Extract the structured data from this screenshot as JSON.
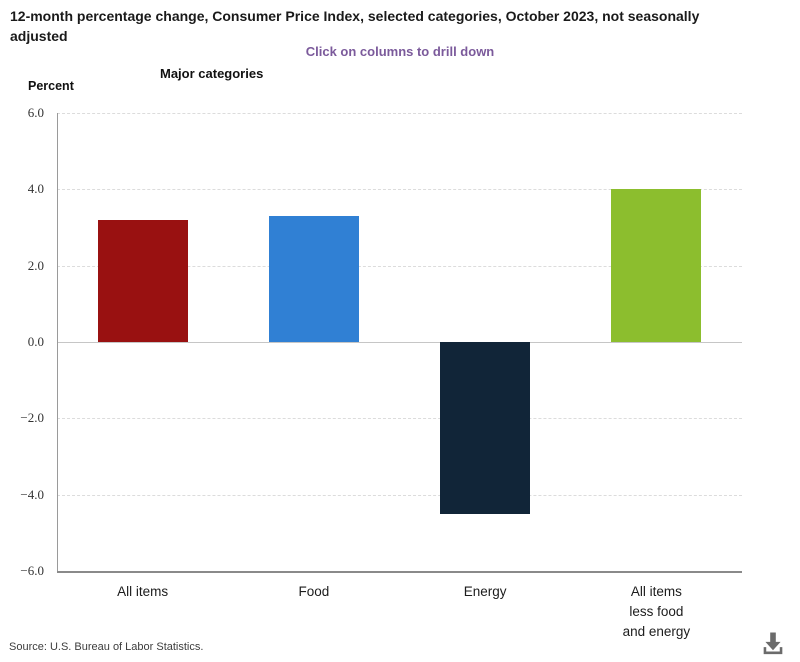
{
  "header": {
    "title": "12-month percentage change, Consumer Price Index, selected categories, October 2023, not seasonally adjusted",
    "subtitle": "Click on columns to drill down",
    "subtitle_color": "#7B5A9B",
    "group_label": "Major categories",
    "axis_unit_label": "Percent"
  },
  "chart_data": {
    "type": "bar",
    "title": "12-month percentage change, Consumer Price Index, selected categories, October 2023, not seasonally adjusted",
    "categories": [
      "All items",
      "Food",
      "Energy",
      "All items less food and energy"
    ],
    "category_label_lines": [
      [
        "All items"
      ],
      [
        "Food"
      ],
      [
        "Energy"
      ],
      [
        "All items",
        "less food",
        "and energy"
      ]
    ],
    "values": [
      3.2,
      3.3,
      -4.5,
      4.0
    ],
    "colors": [
      "#991111",
      "#3080D4",
      "#112538",
      "#8CBE2E"
    ],
    "xlabel": "Major categories",
    "ylabel": "Percent",
    "ylim": [
      -6.0,
      6.0
    ],
    "yticks": [
      6.0,
      4.0,
      2.0,
      0.0,
      -2.0,
      -4.0,
      -6.0
    ],
    "grid": "horizontal-dashed",
    "legend": "none"
  },
  "footer": {
    "source": "Source: U.S. Bureau of Labor Statistics.",
    "download_label": "Download"
  }
}
